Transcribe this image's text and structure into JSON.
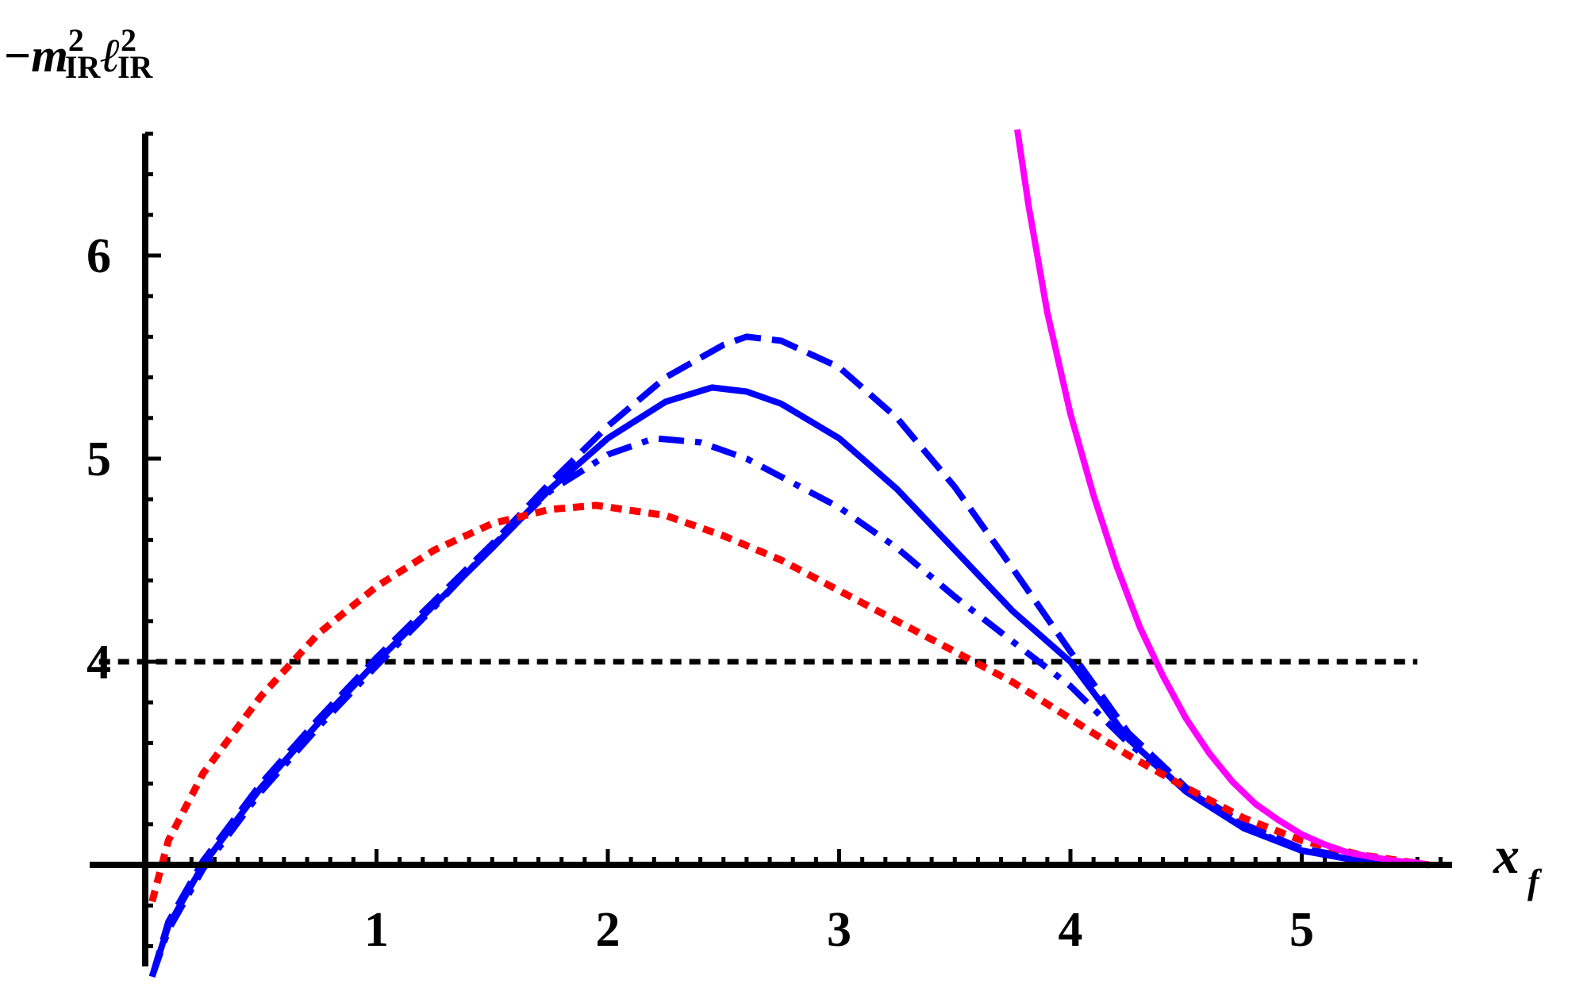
{
  "chart_data": {
    "type": "line",
    "title": "",
    "ylabel": {
      "sign": "−",
      "m": "m",
      "l": "ℓ",
      "sup": "2",
      "sub": "IR"
    },
    "xlabel": {
      "base": "x",
      "sub": "f"
    },
    "xlim": [
      -0.2,
      5.65
    ],
    "ylim": [
      2.5,
      6.6
    ],
    "x_axis_crossing": 3.0,
    "x_ticks": [
      1,
      2,
      3,
      4,
      5
    ],
    "y_ticks": [
      4,
      5,
      6
    ],
    "x_tick_labels": [
      "1",
      "2",
      "3",
      "4",
      "5"
    ],
    "y_tick_labels": [
      "4",
      "5",
      "6"
    ],
    "grid": false,
    "reference_line": {
      "y": 4,
      "x_range": [
        -0.2,
        5.5
      ],
      "style": "dotted",
      "color": "#000000"
    },
    "series": [
      {
        "style": "dashed",
        "color": "#0000ff",
        "points": [
          [
            0.03,
            2.45
          ],
          [
            0.1,
            2.72
          ],
          [
            0.25,
            3.02
          ],
          [
            0.5,
            3.4
          ],
          [
            0.75,
            3.72
          ],
          [
            1.0,
            4.02
          ],
          [
            1.25,
            4.3
          ],
          [
            1.5,
            4.58
          ],
          [
            1.75,
            4.88
          ],
          [
            2.0,
            5.16
          ],
          [
            2.25,
            5.4
          ],
          [
            2.5,
            5.56
          ],
          [
            2.6,
            5.6
          ],
          [
            2.75,
            5.58
          ],
          [
            3.0,
            5.45
          ],
          [
            3.25,
            5.2
          ],
          [
            3.5,
            4.86
          ],
          [
            3.75,
            4.46
          ],
          [
            4.0,
            4.05
          ],
          [
            4.25,
            3.65
          ],
          [
            4.5,
            3.38
          ],
          [
            4.75,
            3.2
          ],
          [
            5.0,
            3.08
          ],
          [
            5.25,
            3.03
          ],
          [
            5.55,
            3.0
          ]
        ]
      },
      {
        "style": "solid",
        "color": "#0000ff",
        "points": [
          [
            0.03,
            2.45
          ],
          [
            0.1,
            2.7
          ],
          [
            0.25,
            3.0
          ],
          [
            0.5,
            3.38
          ],
          [
            0.75,
            3.7
          ],
          [
            1.0,
            4.0
          ],
          [
            1.25,
            4.28
          ],
          [
            1.5,
            4.56
          ],
          [
            1.75,
            4.85
          ],
          [
            2.0,
            5.1
          ],
          [
            2.25,
            5.28
          ],
          [
            2.45,
            5.35
          ],
          [
            2.6,
            5.33
          ],
          [
            2.75,
            5.27
          ],
          [
            3.0,
            5.1
          ],
          [
            3.25,
            4.85
          ],
          [
            3.5,
            4.55
          ],
          [
            3.75,
            4.25
          ],
          [
            4.0,
            4.0
          ],
          [
            4.25,
            3.62
          ],
          [
            4.5,
            3.36
          ],
          [
            4.75,
            3.18
          ],
          [
            5.0,
            3.07
          ],
          [
            5.25,
            3.02
          ],
          [
            5.55,
            3.0
          ]
        ]
      },
      {
        "style": "dashdot",
        "color": "#0000ff",
        "points": [
          [
            0.03,
            2.45
          ],
          [
            0.1,
            2.68
          ],
          [
            0.25,
            2.98
          ],
          [
            0.5,
            3.36
          ],
          [
            0.75,
            3.68
          ],
          [
            1.0,
            3.98
          ],
          [
            1.25,
            4.27
          ],
          [
            1.5,
            4.57
          ],
          [
            1.75,
            4.84
          ],
          [
            2.0,
            5.02
          ],
          [
            2.2,
            5.1
          ],
          [
            2.4,
            5.08
          ],
          [
            2.6,
            5.0
          ],
          [
            3.0,
            4.76
          ],
          [
            3.25,
            4.56
          ],
          [
            3.5,
            4.32
          ],
          [
            3.75,
            4.1
          ],
          [
            4.0,
            3.88
          ],
          [
            4.25,
            3.6
          ],
          [
            4.5,
            3.37
          ],
          [
            4.75,
            3.19
          ],
          [
            5.0,
            3.07
          ],
          [
            5.25,
            3.02
          ],
          [
            5.55,
            3.0
          ]
        ]
      },
      {
        "style": "dotted",
        "color": "#ff0000",
        "points": [
          [
            0.03,
            2.82
          ],
          [
            0.1,
            3.12
          ],
          [
            0.25,
            3.45
          ],
          [
            0.5,
            3.83
          ],
          [
            0.75,
            4.14
          ],
          [
            1.0,
            4.37
          ],
          [
            1.25,
            4.55
          ],
          [
            1.5,
            4.68
          ],
          [
            1.75,
            4.75
          ],
          [
            1.95,
            4.77
          ],
          [
            2.25,
            4.72
          ],
          [
            2.5,
            4.62
          ],
          [
            2.75,
            4.5
          ],
          [
            3.0,
            4.35
          ],
          [
            3.25,
            4.2
          ],
          [
            3.5,
            4.05
          ],
          [
            3.75,
            3.9
          ],
          [
            4.0,
            3.72
          ],
          [
            4.25,
            3.54
          ],
          [
            4.5,
            3.38
          ],
          [
            4.75,
            3.23
          ],
          [
            5.0,
            3.12
          ],
          [
            5.25,
            3.05
          ],
          [
            5.55,
            3.0
          ]
        ]
      },
      {
        "style": "solid",
        "color": "#ff00ff",
        "points": [
          [
            3.77,
            6.62
          ],
          [
            3.82,
            6.24
          ],
          [
            3.9,
            5.72
          ],
          [
            4.0,
            5.22
          ],
          [
            4.1,
            4.82
          ],
          [
            4.2,
            4.47
          ],
          [
            4.3,
            4.17
          ],
          [
            4.4,
            3.93
          ],
          [
            4.5,
            3.72
          ],
          [
            4.6,
            3.55
          ],
          [
            4.7,
            3.41
          ],
          [
            4.8,
            3.3
          ],
          [
            4.9,
            3.22
          ],
          [
            5.0,
            3.15
          ],
          [
            5.1,
            3.1
          ],
          [
            5.2,
            3.06
          ],
          [
            5.3,
            3.04
          ],
          [
            5.4,
            3.02
          ],
          [
            5.5,
            3.01
          ],
          [
            5.55,
            3.0
          ]
        ]
      }
    ]
  }
}
